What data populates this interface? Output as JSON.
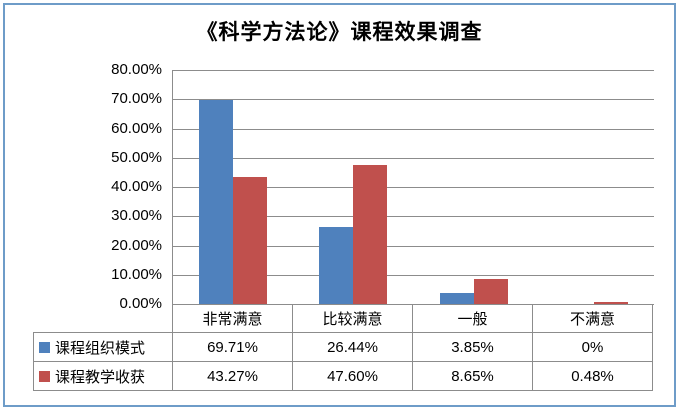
{
  "chart_data": {
    "type": "bar",
    "title": "《科学方法论》课程效果调查",
    "categories": [
      "非常满意",
      "比较满意",
      "一般",
      "不满意"
    ],
    "series": [
      {
        "name": "课程组织模式",
        "color": "#4F81BD",
        "values": [
          69.71,
          26.44,
          3.85,
          0
        ],
        "labels": [
          "69.71%",
          "26.44%",
          "3.85%",
          "0%"
        ]
      },
      {
        "name": "课程教学收获",
        "color": "#C0504D",
        "values": [
          43.27,
          47.6,
          8.65,
          0.48
        ],
        "labels": [
          "43.27%",
          "47.60%",
          "8.65%",
          "0.48%"
        ]
      }
    ],
    "ylim": [
      0,
      80
    ],
    "ytick_step": 10,
    "ytick_labels": [
      "0.00%",
      "10.00%",
      "20.00%",
      "30.00%",
      "40.00%",
      "50.00%",
      "60.00%",
      "70.00%",
      "80.00%"
    ],
    "grid": true,
    "legend_position": "data-table-below"
  },
  "style_colors": {
    "series1": "#4F81BD",
    "series2": "#C0504D",
    "gridline": "#8C8C8C",
    "frame_border": "#6E9CC8",
    "text": "#000000"
  }
}
